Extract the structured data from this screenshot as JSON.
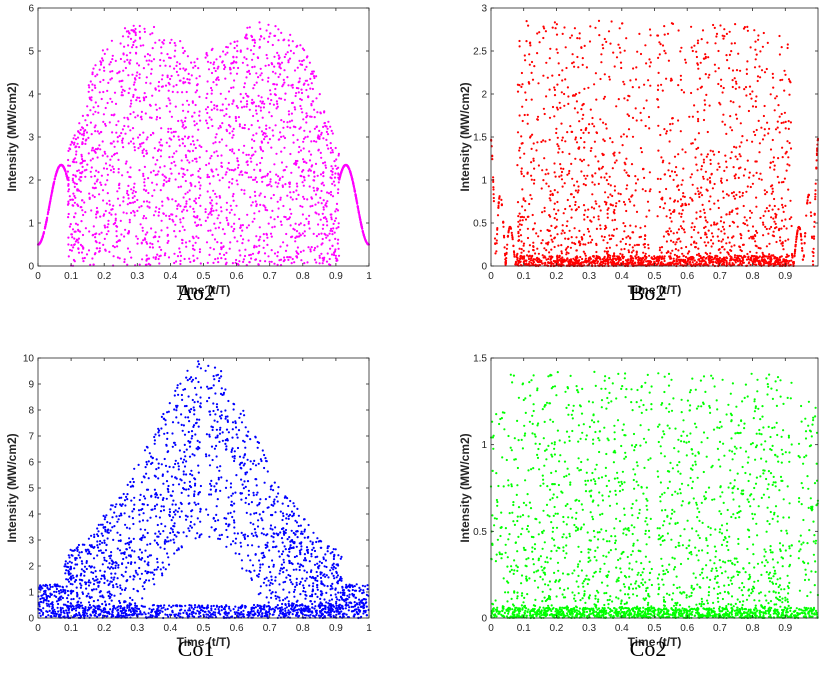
{
  "chart_data": [
    {
      "type": "scatter",
      "caption": "Ao2",
      "xlabel": "Time (t/T)",
      "ylabel": "Intensity (MW/cm2)",
      "xlim": [
        0,
        1
      ],
      "ylim": [
        0,
        6
      ],
      "xticks": [
        "0",
        "0.1",
        "0.2",
        "0.3",
        "0.4",
        "0.5",
        "0.6",
        "0.7",
        "0.8",
        "0.9",
        "1"
      ],
      "yticks": [
        "0",
        "1",
        "2",
        "3",
        "4",
        "5",
        "6"
      ],
      "color": "#ff00ff",
      "grid": false,
      "series": [
        {
          "points_description": "dense points under envelope",
          "envelope_x": [
            0,
            0.04,
            0.07,
            0.1,
            0.12,
            0.14,
            0.16,
            0.2,
            0.25,
            0.3,
            0.35,
            0.4,
            0.45,
            0.49,
            0.51,
            0.55,
            0.6,
            0.65,
            0.7,
            0.75,
            0.8,
            0.84,
            0.86,
            0.88,
            0.9,
            0.93,
            0.96,
            1
          ],
          "envelope_y": [
            0.5,
            0.9,
            2.35,
            2.9,
            3.3,
            3.7,
            4.5,
            5.1,
            5.5,
            5.7,
            5.65,
            5.4,
            5.15,
            5.0,
            5.0,
            5.15,
            5.4,
            5.65,
            5.7,
            5.5,
            5.1,
            4.5,
            3.7,
            3.3,
            2.9,
            2.35,
            0.9,
            0.5
          ]
        }
      ]
    },
    {
      "type": "scatter",
      "caption": "Bo2",
      "xlabel": "Time (t/T)",
      "ylabel": "Intensity (MW/cm2)",
      "xlim": [
        0,
        1
      ],
      "ylim": [
        0,
        3
      ],
      "xticks": [
        "0",
        "0.1",
        "0.2",
        "0.3",
        "0.4",
        "0.5",
        "0.6",
        "0.7",
        "0.8",
        "0.9"
      ],
      "yticks": [
        "0",
        "0.5",
        "1",
        "1.5",
        "2",
        "2.5",
        "3"
      ],
      "color": "#ff0000",
      "grid": false,
      "series": [
        {
          "points_description": "random points, max about 2.85, bounded x 0.08-0.92",
          "envelope_x": [
            0.08,
            0.92
          ],
          "envelope_y": [
            2.85,
            2.85
          ]
        }
      ]
    },
    {
      "type": "scatter",
      "caption": "Co1",
      "xlabel": "Time (t/T)",
      "ylabel": "Intensity (MW/cm2)",
      "xlim": [
        0,
        1
      ],
      "ylim": [
        0,
        10
      ],
      "xticks": [
        "0",
        "0.1",
        "0.2",
        "0.3",
        "0.4",
        "0.5",
        "0.6",
        "0.7",
        "0.8",
        "0.9",
        "1"
      ],
      "yticks": [
        "0",
        "1",
        "2",
        "3",
        "4",
        "5",
        "6",
        "7",
        "8",
        "9",
        "10"
      ],
      "color": "#0000ff",
      "grid": false,
      "series": [
        {
          "points_description": "triangular envelope peaking at 10 near t=0.5",
          "envelope_x": [
            0.08,
            0.15,
            0.2,
            0.25,
            0.3,
            0.35,
            0.4,
            0.45,
            0.5,
            0.55,
            0.6,
            0.65,
            0.7,
            0.75,
            0.8,
            0.85,
            0.92
          ],
          "envelope_y": [
            2.5,
            3.0,
            4.0,
            4.8,
            6.0,
            7.2,
            8.5,
            9.6,
            10.0,
            9.6,
            8.5,
            7.2,
            6.0,
            4.8,
            4.0,
            3.0,
            2.5
          ]
        }
      ]
    },
    {
      "type": "scatter",
      "caption": "Co2",
      "xlabel": "Time (t/T)",
      "ylabel": "Intensity (MW/cm2)",
      "xlim": [
        0,
        1
      ],
      "ylim": [
        0,
        1.5
      ],
      "xticks": [
        "0",
        "0.1",
        "0.2",
        "0.3",
        "0.4",
        "0.5",
        "0.6",
        "0.7",
        "0.8",
        "0.9"
      ],
      "yticks": [
        "0",
        "0.5",
        "1",
        "1.5"
      ],
      "color": "#00ff00",
      "grid": false,
      "series": [
        {
          "points_description": "random points, max about 1.42, bounded x 0.06-0.92",
          "envelope_x": [
            0.06,
            0.92
          ],
          "envelope_y": [
            1.42,
            1.42
          ]
        }
      ]
    }
  ]
}
